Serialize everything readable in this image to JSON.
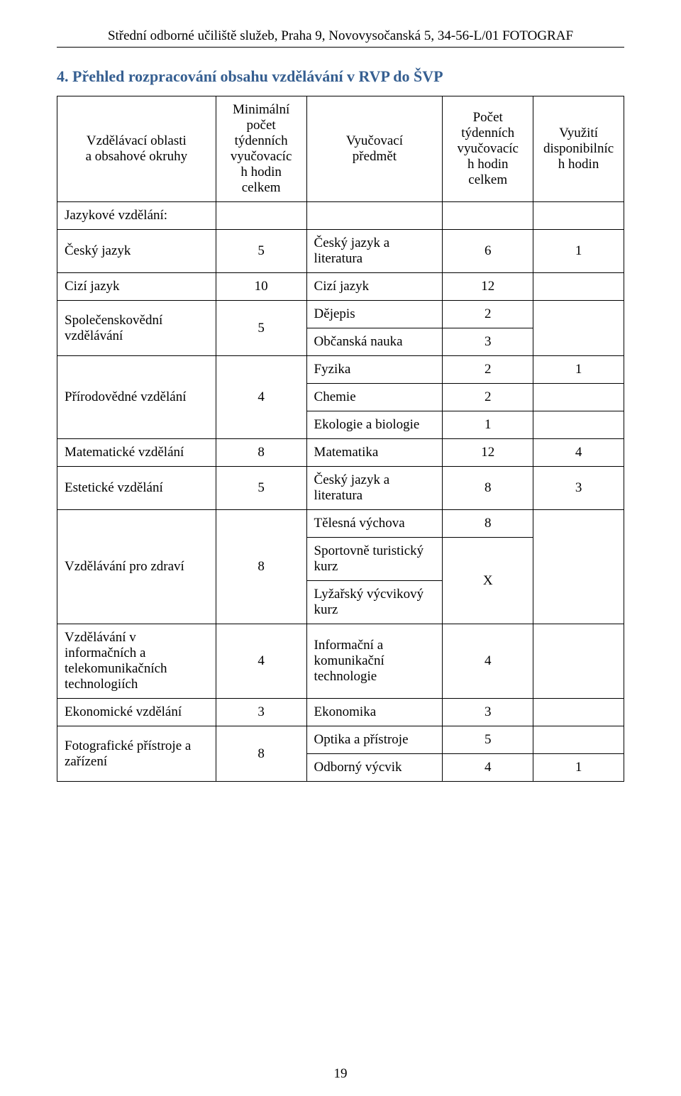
{
  "header": "Střední odborné učiliště služeb, Praha 9, Novovysočanská 5, 34-56-L/01 FOTOGRAF",
  "section_title": "4. Přehled rozpracování obsahu vzdělávání v RVP do ŠVP",
  "table_head": {
    "areas_line1": "Vzdělávací oblasti",
    "areas_line2": "a obsahové okruhy",
    "min_line1": "Minimální",
    "min_line2": "počet",
    "min_line3": "týdenních",
    "min_line4": "vyučovacíc",
    "min_line5": "h hodin",
    "min_line6": "celkem",
    "subj_line1": "Vyučovací",
    "subj_line2": "předmět",
    "cnt_line1": "Počet",
    "cnt_line2": "týdenních",
    "cnt_line3": "vyučovacíc",
    "cnt_line4": "h hodin",
    "cnt_line5": "celkem",
    "disp_line1": "Využití",
    "disp_line2": "disponibilníc",
    "disp_line3": "h hodin"
  },
  "rows": {
    "jazykove": "Jazykové vzdělání:",
    "cesky_jazyk_area": "Český jazyk",
    "cesky_jazyk_min": "5",
    "cesky_jazyk_lit": "Český jazyk a literatura",
    "cesky_jazyk_cnt": "6",
    "cesky_jazyk_disp": "1",
    "cizi_area": "Cizí jazyk",
    "cizi_min": "10",
    "cizi_subj": "Cizí jazyk",
    "cizi_cnt": "12",
    "spolec_area": "Společenskovědní vzdělávání",
    "spolec_min": "5",
    "dejepis": "Dějepis",
    "dejepis_cnt": "2",
    "obcan": "Občanská nauka",
    "obcan_cnt": "3",
    "prirodo_area": "Přírodovědné vzdělání",
    "prirodo_min": "4",
    "fyzika": "Fyzika",
    "fyzika_cnt": "2",
    "fyzika_disp": "1",
    "chemie": "Chemie",
    "chemie_cnt": "2",
    "ekobio": "Ekologie a biologie",
    "ekobio_cnt": "1",
    "mat_area": "Matematické vzdělání",
    "mat_min": "8",
    "mat_subj": "Matematika",
    "mat_cnt": "12",
    "mat_disp": "4",
    "est_area": "Estetické vzdělání",
    "est_min": "5",
    "est_subj": "Český jazyk a literatura",
    "est_cnt": "8",
    "est_disp": "3",
    "zdravi_area": "Vzdělávání pro zdraví",
    "zdravi_min": "8",
    "telesna": "Tělesná výchova",
    "telesna_cnt": "8",
    "sport": "Sportovně turistický kurz",
    "lyz": "Lyžařský výcvikový kurz",
    "sport_x": "X",
    "ikt_area": "Vzdělávání v informačních a telekomunikačních technologiích",
    "ikt_min": "4",
    "ikt_subj": "Informační a komunikační technologie",
    "ikt_cnt": "4",
    "eko_area": "Ekonomické vzdělání",
    "eko_min": "3",
    "eko_subj": "Ekonomika",
    "eko_cnt": "3",
    "foto_area": "Fotografické přístroje a zařízení",
    "foto_min": "8",
    "optika": "Optika a přístroje",
    "optika_cnt": "5",
    "odborny": "Odborný výcvik",
    "odborny_cnt": "4",
    "odborny_disp": "1"
  },
  "page_number": "19"
}
